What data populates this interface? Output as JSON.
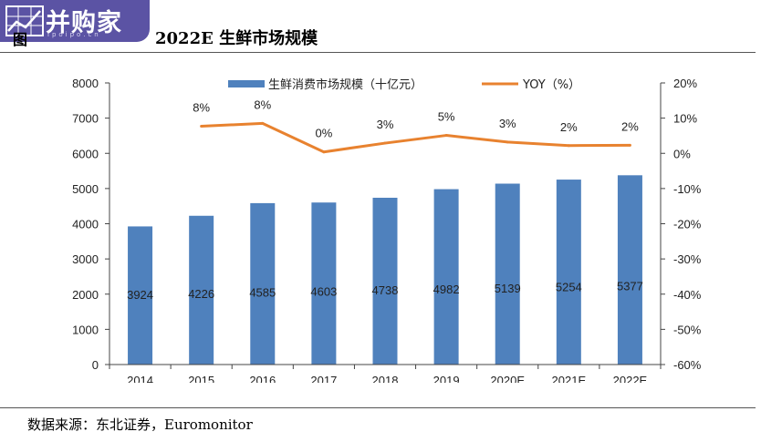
{
  "header": {
    "logo_text": "并购家",
    "logo_url": "ipoipo.cn",
    "fig_label": "图",
    "title": "2022E 生鲜市场规模"
  },
  "footer": {
    "source": "数据来源：东北证券，Euromonitor"
  },
  "colors": {
    "bar": "#4f81bd",
    "line": "#e8822f",
    "logo_bg": "#5b53a4"
  },
  "chart_data": {
    "type": "bar",
    "title": "2022E 生鲜市场规模",
    "categories": [
      "2014",
      "2015",
      "2016",
      "2017",
      "2018",
      "2019",
      "2020E",
      "2021E",
      "2022E"
    ],
    "legend_position": "top",
    "series": [
      {
        "name": "生鲜消费市场规模（十亿元）",
        "type": "bar",
        "axis": "left",
        "values": [
          3924,
          4226,
          4585,
          4603,
          4738,
          4982,
          5139,
          5254,
          5377
        ],
        "labels": [
          "3924",
          "4226",
          "4585",
          "4603",
          "4738",
          "4982",
          "5139",
          "5254",
          "5377"
        ]
      },
      {
        "name": "YOY（%）",
        "type": "line",
        "axis": "right",
        "values": [
          null,
          7.7,
          8.5,
          0.4,
          2.9,
          5.1,
          3.2,
          2.2,
          2.3
        ],
        "labels": [
          "",
          "8%",
          "8%",
          "0%",
          "3%",
          "5%",
          "3%",
          "2%",
          "2%"
        ]
      }
    ],
    "y_left": {
      "min": 0,
      "max": 8000,
      "ticks": [
        "0",
        "1000",
        "2000",
        "3000",
        "4000",
        "5000",
        "6000",
        "7000",
        "8000"
      ]
    },
    "y_right": {
      "min": -60,
      "max": 20,
      "ticks": [
        "-60%",
        "-50%",
        "-40%",
        "-30%",
        "-20%",
        "-10%",
        "0%",
        "10%",
        "20%"
      ]
    },
    "grid": false
  }
}
